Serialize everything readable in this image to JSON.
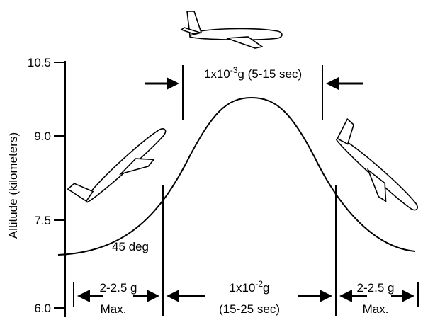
{
  "axis": {
    "label": "Altitude (kilometers)",
    "ticks": [
      "10.5",
      "9.0",
      "7.5",
      "6.0"
    ]
  },
  "top_label": {
    "base": "1x10",
    "exponent": "-3",
    "suffix": "g (5-15 sec)"
  },
  "angle_label": "45 deg",
  "left_phase": {
    "line1": "2-2.5 g",
    "line2": "Max."
  },
  "middle_phase": {
    "base": "1x10",
    "exponent": "-2",
    "suffix": "g",
    "line2": "(15-25 sec)"
  },
  "right_phase": {
    "line1": "2-2.5 g",
    "line2": "Max."
  }
}
